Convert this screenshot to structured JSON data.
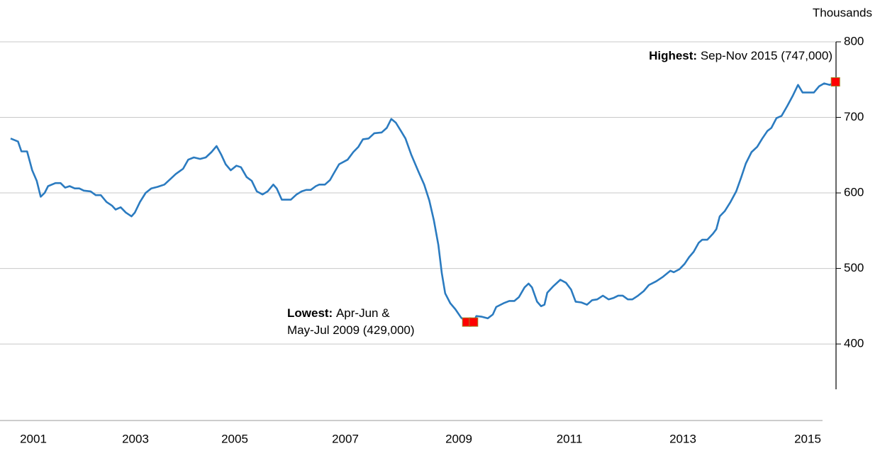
{
  "chart_data": {
    "type": "line",
    "y_axis_label": "Thousands",
    "xlim": [
      2001.3,
      2015.85
    ],
    "ylim": [
      340,
      800
    ],
    "yticks": [
      400,
      500,
      600,
      700,
      800
    ],
    "xticks": [
      {
        "value": 2001.7,
        "label": "2001"
      },
      {
        "value": 2003.5,
        "label": "2003"
      },
      {
        "value": 2005.25,
        "label": "2005"
      },
      {
        "value": 2007.2,
        "label": "2007"
      },
      {
        "value": 2009.2,
        "label": "2009"
      },
      {
        "value": 2011.15,
        "label": "2011"
      },
      {
        "value": 2013.15,
        "label": "2013"
      },
      {
        "value": 2015.35,
        "label": "2015"
      }
    ],
    "grid": true,
    "series": [
      {
        "color": "#2b7bc0",
        "x": [
          2001.3,
          2001.43,
          2001.49,
          2001.59,
          2001.68,
          2001.76,
          2001.83,
          2001.9,
          2001.96,
          2002.09,
          2002.18,
          2002.26,
          2002.34,
          2002.43,
          2002.51,
          2002.59,
          2002.71,
          2002.8,
          2002.89,
          2002.99,
          2003.09,
          2003.15,
          2003.24,
          2003.33,
          2003.43,
          2003.49,
          2003.58,
          2003.68,
          2003.78,
          2003.89,
          2004.01,
          2004.11,
          2004.21,
          2004.34,
          2004.43,
          2004.53,
          2004.64,
          2004.74,
          2004.84,
          2004.93,
          2005.01,
          2005.09,
          2005.18,
          2005.28,
          2005.36,
          2005.46,
          2005.55,
          2005.64,
          2005.74,
          2005.83,
          2005.93,
          2005.99,
          2006.08,
          2006.24,
          2006.34,
          2006.43,
          2006.51,
          2006.59,
          2006.68,
          2006.74,
          2006.84,
          2006.93,
          2006.99,
          2007.09,
          2007.24,
          2007.34,
          2007.43,
          2007.51,
          2007.61,
          2007.71,
          2007.84,
          2007.93,
          2008.01,
          2008.09,
          2008.18,
          2008.26,
          2008.36,
          2008.49,
          2008.59,
          2008.68,
          2008.76,
          2008.84,
          2008.9,
          2008.96,
          2009.05,
          2009.14,
          2009.24,
          2009.34,
          2009.46,
          2009.51,
          2009.61,
          2009.71,
          2009.8,
          2009.86,
          2009.99,
          2010.09,
          2010.18,
          2010.26,
          2010.36,
          2010.43,
          2010.49,
          2010.58,
          2010.65,
          2010.71,
          2010.76,
          2010.86,
          2010.99,
          2011.09,
          2011.18,
          2011.26,
          2011.36,
          2011.46,
          2011.55,
          2011.64,
          2011.74,
          2011.84,
          2011.93,
          2012.01,
          2012.09,
          2012.18,
          2012.26,
          2012.36,
          2012.46,
          2012.55,
          2012.68,
          2012.8,
          2012.93,
          2012.99,
          2013.09,
          2013.18,
          2013.26,
          2013.34,
          2013.43,
          2013.49,
          2013.58,
          2013.68,
          2013.74,
          2013.8,
          2013.89,
          2013.99,
          2014.09,
          2014.18,
          2014.26,
          2014.36,
          2014.46,
          2014.55,
          2014.64,
          2014.71,
          2014.8,
          2014.89,
          2014.99,
          2015.09,
          2015.18,
          2015.26,
          2015.39,
          2015.46,
          2015.55,
          2015.64,
          2015.74,
          2015.84
        ],
        "values": [
          672,
          668,
          655,
          655,
          630,
          616,
          595,
          600,
          609,
          613,
          613,
          607,
          609,
          606,
          606,
          603,
          602,
          597,
          597,
          588,
          583,
          578,
          581,
          574,
          569,
          574,
          588,
          600,
          606,
          608,
          611,
          618,
          625,
          632,
          644,
          647,
          645,
          647,
          654,
          662,
          651,
          638,
          630,
          636,
          634,
          621,
          616,
          602,
          598,
          602,
          611,
          606,
          591,
          591,
          598,
          602,
          604,
          604,
          609,
          611,
          611,
          617,
          625,
          638,
          644,
          654,
          661,
          671,
          672,
          679,
          680,
          686,
          698,
          693,
          682,
          672,
          651,
          628,
          611,
          590,
          564,
          531,
          494,
          467,
          454,
          446,
          435,
          429,
          429,
          437,
          436,
          434,
          439,
          449,
          454,
          457,
          457,
          462,
          475,
          480,
          475,
          456,
          450,
          452,
          468,
          476,
          485,
          481,
          472,
          456,
          455,
          452,
          458,
          459,
          464,
          459,
          461,
          464,
          464,
          459,
          459,
          464,
          470,
          478,
          483,
          489,
          497,
          495,
          499,
          506,
          515,
          522,
          534,
          538,
          538,
          546,
          552,
          569,
          576,
          588,
          602,
          621,
          639,
          654,
          661,
          672,
          682,
          686,
          699,
          702,
          715,
          729,
          743,
          733,
          733,
          733,
          741,
          745,
          743,
          747
        ]
      }
    ],
    "markers": {
      "color": "#ff0000",
      "x": [
        2015.84,
        2009.34,
        2009.46
      ],
      "values": [
        747,
        429,
        429
      ]
    },
    "annotations": [
      {
        "bold": "Highest:",
        "lines": [
          "Sep-Nov 2015 (747,000)"
        ]
      },
      {
        "bold": "Lowest:",
        "lines": [
          "Apr-Jun &",
          "May-Jul 2009 (429,000)"
        ]
      }
    ]
  }
}
